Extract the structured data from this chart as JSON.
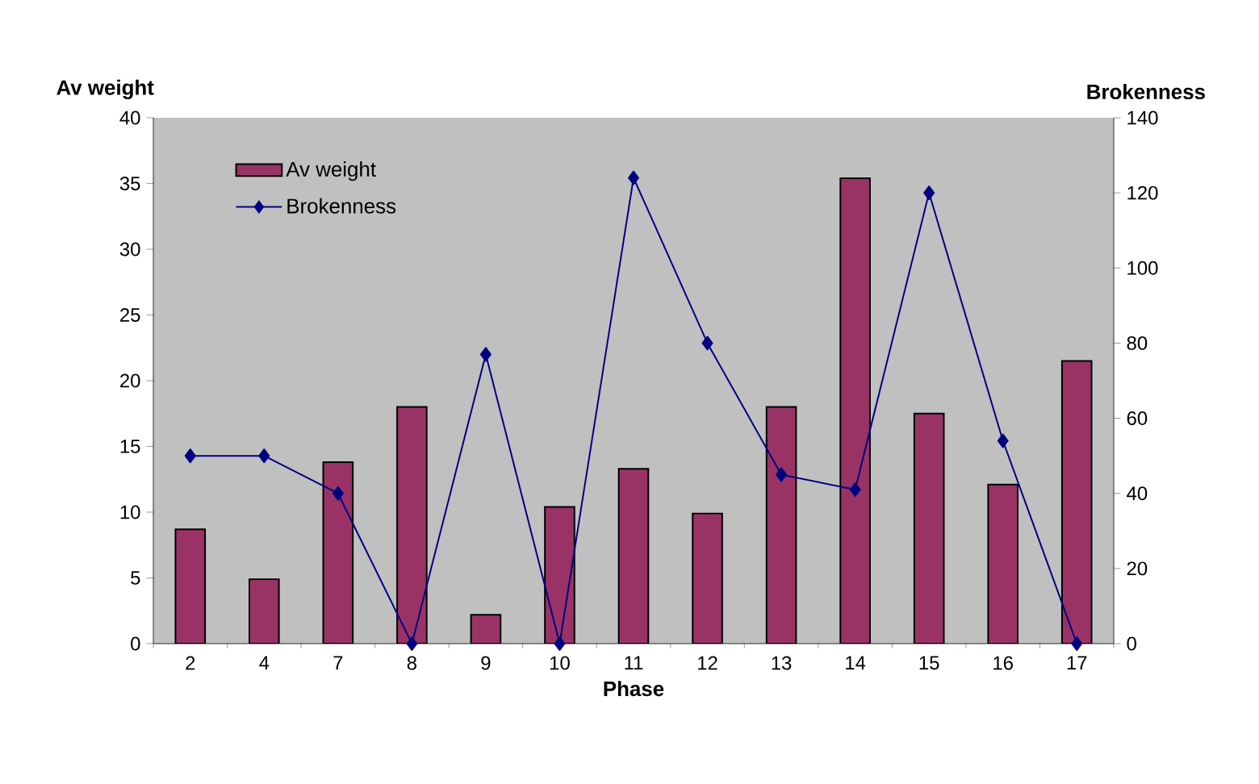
{
  "chart_data": {
    "type": "bar",
    "xlabel": "Phase",
    "ylabel": "Av weight",
    "y2label": "Brokenness",
    "categories": [
      "2",
      "4",
      "7",
      "8",
      "9",
      "10",
      "11",
      "12",
      "13",
      "14",
      "15",
      "16",
      "17"
    ],
    "series": [
      {
        "name": "Av weight",
        "color": "#993366",
        "values": [
          8.7,
          4.9,
          13.8,
          18.0,
          2.2,
          10.4,
          13.3,
          9.9,
          18.0,
          35.4,
          17.5,
          12.1,
          21.5
        ]
      },
      {
        "name": "Brokenness",
        "type": "line",
        "axis": "y2",
        "color": "#000080",
        "values": [
          50,
          50,
          40,
          0,
          77,
          0,
          124,
          80,
          45,
          41,
          120,
          54,
          0
        ]
      }
    ],
    "ylim": [
      0,
      40
    ],
    "yticks": [
      0,
      5,
      10,
      15,
      20,
      25,
      30,
      35,
      40
    ],
    "y2lim": [
      0,
      140
    ],
    "y2ticks": [
      0,
      20,
      40,
      60,
      80,
      100,
      120,
      140
    ],
    "marker": "diamond",
    "legend": "top left"
  }
}
